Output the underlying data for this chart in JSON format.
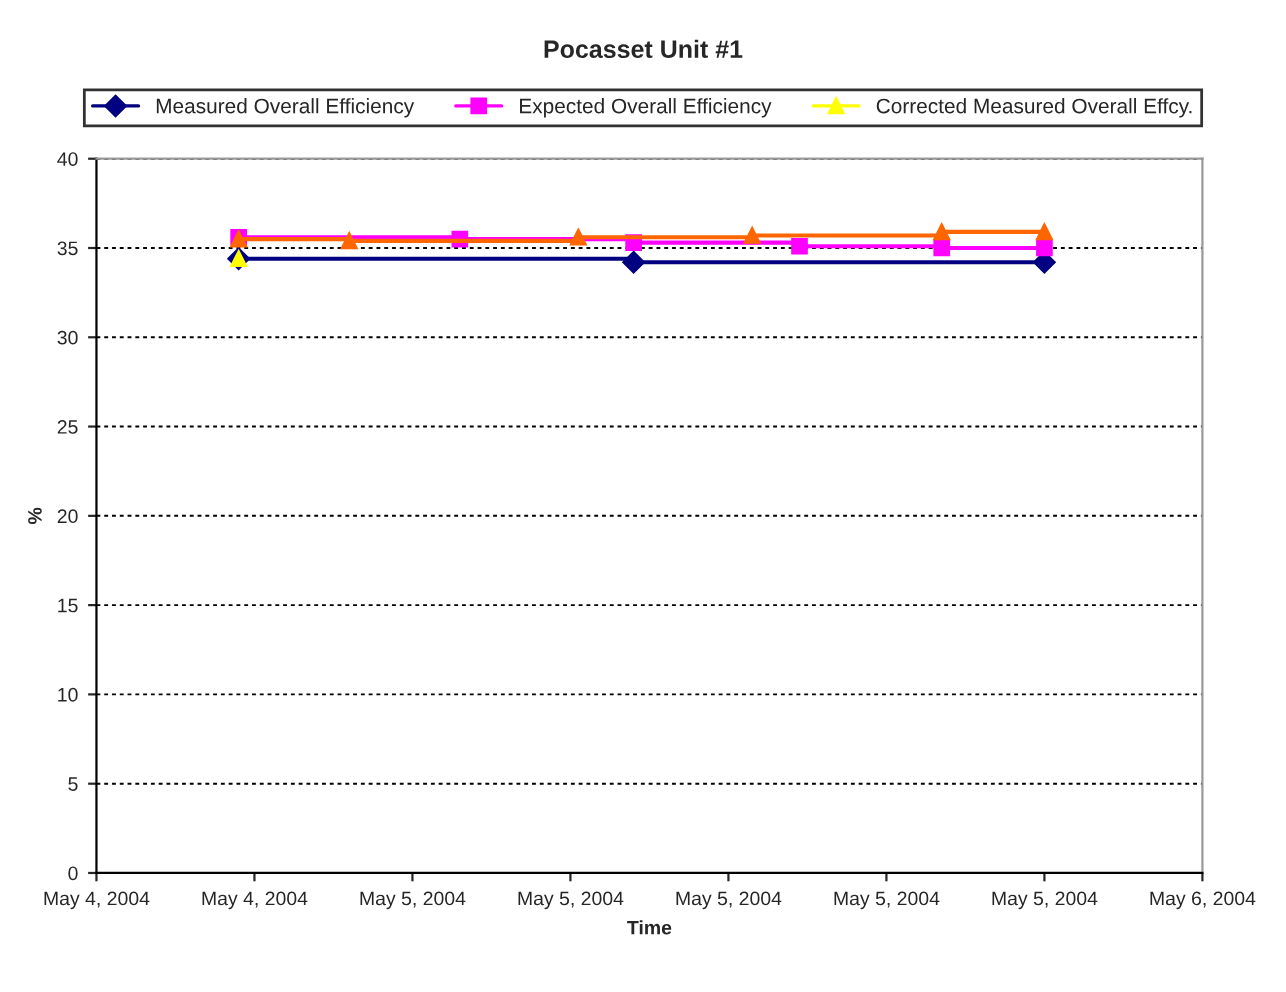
{
  "chart_data": {
    "type": "step",
    "title": "Pocasset Unit #1",
    "xlabel": "Time",
    "ylabel": "%",
    "xlim": [
      "2004-05-04T14:00",
      "2004-05-06T01:00"
    ],
    "xticks": [
      {
        "value": "2004-05-04T14:00",
        "label": "May 4, 2004"
      },
      {
        "value": "2004-05-04T19:00",
        "label": "May 4, 2004"
      },
      {
        "value": "2004-05-05T00:00",
        "label": "May 5, 2004"
      },
      {
        "value": "2004-05-05T05:00",
        "label": "May 5, 2004"
      },
      {
        "value": "2004-05-05T10:00",
        "label": "May 5, 2004"
      },
      {
        "value": "2004-05-05T15:00",
        "label": "May 5, 2004"
      },
      {
        "value": "2004-05-05T20:00",
        "label": "May 5, 2004"
      },
      {
        "value": "2004-05-06T01:00",
        "label": "May 6, 2004"
      }
    ],
    "ylim": [
      0,
      40
    ],
    "yticks": [
      0,
      5,
      10,
      15,
      20,
      25,
      30,
      35,
      40
    ],
    "grid": "y",
    "legend": "top",
    "series": [
      {
        "x": [
          "2004-05-04T18:30",
          "2004-05-05T07:00",
          "2004-05-05T20:00"
        ],
        "values": [
          34.4,
          34.2,
          34.2
        ],
        "color": "#000080",
        "marker": "diamond",
        "name": "Measured Overall Efficiency"
      },
      {
        "x": [
          "2004-05-04T18:30",
          "2004-05-05T01:30",
          "2004-05-05T07:00",
          "2004-05-05T12:15",
          "2004-05-05T16:45",
          "2004-05-05T20:00"
        ],
        "values": [
          35.6,
          35.5,
          35.3,
          35.1,
          35.0,
          35.0
        ],
        "color": "#ff00ff",
        "marker": "square",
        "name": "Expected Overall Efficiency"
      },
      {
        "type": "scatter",
        "x": [
          "2004-05-04T18:30"
        ],
        "values": [
          34.4
        ],
        "color": "#ffff00",
        "marker": "triangle",
        "name": "Corrected Measured Overall Effcy."
      },
      {
        "x": [
          "2004-05-04T18:30",
          "2004-05-04T22:00",
          "2004-05-05T05:15",
          "2004-05-05T10:45",
          "2004-05-05T16:45",
          "2004-05-05T20:00"
        ],
        "values": [
          35.5,
          35.4,
          35.6,
          35.7,
          35.9,
          35.9
        ],
        "color": "#ff6600",
        "marker": "triangle"
      }
    ]
  }
}
